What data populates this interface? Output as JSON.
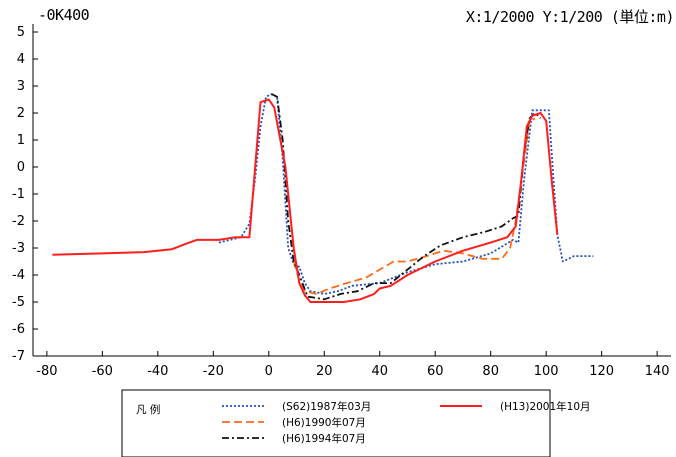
{
  "header": {
    "section": "-0K400",
    "scale": "X:1/2000  Y:1/200 (単位:m)"
  },
  "legend": {
    "title": "凡  例"
  },
  "colors": {
    "S62": "#1f4fbf",
    "H6_1990": "#ff6a1a",
    "H6_1994": "#111111",
    "H13": "#ff1e1e"
  },
  "chart_data": {
    "type": "line",
    "title": "-0K400",
    "xlabel": "",
    "ylabel": "",
    "xlim": [
      -85,
      145
    ],
    "ylim": [
      -7,
      5
    ],
    "xticks": [
      -80,
      -60,
      -40,
      -20,
      0,
      20,
      40,
      60,
      80,
      100,
      120,
      140
    ],
    "yticks": [
      5,
      4,
      3,
      2,
      1,
      0,
      -1,
      -2,
      -3,
      -4,
      -5,
      -6,
      -7
    ],
    "grid": false,
    "legend_position": "bottom-center",
    "series": [
      {
        "name": "(S62)1987年03月",
        "style": "dotted",
        "color": "#1f4fbf",
        "points": [
          [
            -18,
            -2.8
          ],
          [
            -10,
            -2.6
          ],
          [
            -7,
            -2.1
          ],
          [
            -5,
            -0.5
          ],
          [
            -3,
            1.5
          ],
          [
            -1,
            2.6
          ],
          [
            1,
            2.7
          ],
          [
            3,
            2.6
          ],
          [
            5,
            0.3
          ],
          [
            7,
            -3.0
          ],
          [
            9,
            -3.6
          ],
          [
            11,
            -3.7
          ],
          [
            13,
            -4.3
          ],
          [
            15,
            -4.6
          ],
          [
            20,
            -4.7
          ],
          [
            25,
            -4.6
          ],
          [
            30,
            -4.4
          ],
          [
            40,
            -4.3
          ],
          [
            50,
            -3.9
          ],
          [
            60,
            -3.6
          ],
          [
            70,
            -3.5
          ],
          [
            80,
            -3.2
          ],
          [
            88,
            -2.7
          ],
          [
            90,
            -2.8
          ],
          [
            92,
            -0.5
          ],
          [
            95,
            2.1
          ],
          [
            101,
            2.1
          ],
          [
            102,
            0.5
          ],
          [
            104,
            -2.5
          ],
          [
            106,
            -3.5
          ],
          [
            110,
            -3.3
          ],
          [
            117,
            -3.3
          ]
        ]
      },
      {
        "name": "(H6)1990年07月",
        "style": "dashed",
        "color": "#ff6a1a",
        "points": [
          [
            9,
            -3.5
          ],
          [
            11,
            -4.2
          ],
          [
            13,
            -4.6
          ],
          [
            17,
            -4.7
          ],
          [
            22,
            -4.5
          ],
          [
            28,
            -4.3
          ],
          [
            35,
            -4.1
          ],
          [
            40,
            -3.8
          ],
          [
            45,
            -3.5
          ],
          [
            50,
            -3.5
          ],
          [
            57,
            -3.3
          ],
          [
            63,
            -3.1
          ],
          [
            70,
            -3.2
          ],
          [
            77,
            -3.4
          ],
          [
            84,
            -3.4
          ],
          [
            87,
            -3.0
          ],
          [
            89,
            -2.0
          ],
          [
            92,
            0.2
          ],
          [
            94,
            1.7
          ],
          [
            96,
            1.8
          ]
        ]
      },
      {
        "name": "(H6)1994年07月",
        "style": "dashdot",
        "color": "#111111",
        "points": [
          [
            1,
            2.7
          ],
          [
            3,
            2.6
          ],
          [
            5,
            1.0
          ],
          [
            7,
            -2.0
          ],
          [
            9,
            -3.5
          ],
          [
            11,
            -4.0
          ],
          [
            14,
            -4.8
          ],
          [
            20,
            -4.9
          ],
          [
            26,
            -4.7
          ],
          [
            32,
            -4.6
          ],
          [
            38,
            -4.3
          ],
          [
            44,
            -4.3
          ],
          [
            50,
            -3.8
          ],
          [
            56,
            -3.3
          ],
          [
            62,
            -2.9
          ],
          [
            70,
            -2.6
          ],
          [
            78,
            -2.4
          ],
          [
            84,
            -2.2
          ],
          [
            88,
            -1.9
          ],
          [
            90,
            -1.8
          ],
          [
            92,
            0.5
          ],
          [
            94,
            1.8
          ],
          [
            96,
            2.0
          ],
          [
            98,
            1.8
          ]
        ]
      },
      {
        "name": "(H13)2001年10月",
        "style": "solid",
        "color": "#ff1e1e",
        "points": [
          [
            -78,
            -3.25
          ],
          [
            -60,
            -3.2
          ],
          [
            -45,
            -3.15
          ],
          [
            -35,
            -3.05
          ],
          [
            -30,
            -2.85
          ],
          [
            -26,
            -2.7
          ],
          [
            -18,
            -2.7
          ],
          [
            -12,
            -2.6
          ],
          [
            -7,
            -2.6
          ],
          [
            -3,
            2.4
          ],
          [
            0,
            2.5
          ],
          [
            2,
            2.2
          ],
          [
            6,
            0.0
          ],
          [
            9,
            -3.0
          ],
          [
            11,
            -4.3
          ],
          [
            13,
            -4.75
          ],
          [
            15,
            -5.0
          ],
          [
            20,
            -5.0
          ],
          [
            27,
            -5.0
          ],
          [
            33,
            -4.9
          ],
          [
            38,
            -4.7
          ],
          [
            40,
            -4.5
          ],
          [
            44,
            -4.4
          ],
          [
            50,
            -4.0
          ],
          [
            60,
            -3.5
          ],
          [
            70,
            -3.1
          ],
          [
            80,
            -2.8
          ],
          [
            86,
            -2.6
          ],
          [
            89,
            -2.2
          ],
          [
            91,
            -0.5
          ],
          [
            93,
            1.5
          ],
          [
            95,
            1.9
          ],
          [
            98,
            2.0
          ],
          [
            100,
            1.7
          ],
          [
            102,
            -0.5
          ],
          [
            104,
            -2.5
          ]
        ]
      }
    ]
  }
}
